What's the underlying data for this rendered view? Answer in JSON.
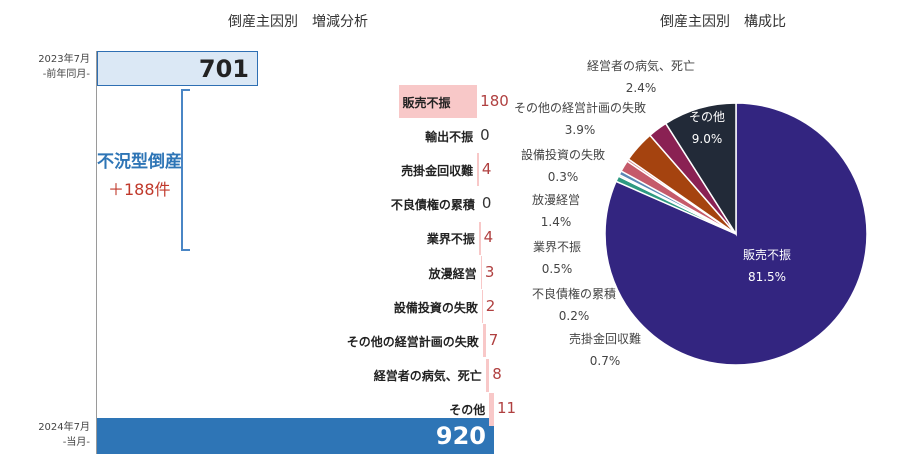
{
  "chart_data": [
    {
      "type": "waterfall",
      "title": "倒産主因別　増減分析",
      "start": {
        "label": "2023年7月",
        "sublabel": "-前年同月-",
        "value": 701
      },
      "end": {
        "label": "2024年7月",
        "sublabel": "-当月-",
        "value": 920
      },
      "categories": [
        "販売不振",
        "輸出不振",
        "売掛金回収難",
        "不良債権の累積",
        "業界不振",
        "放漫経営",
        "設備投資の失敗",
        "その他の経営計画の失敗",
        "経営者の病気、死亡",
        "その他"
      ],
      "values": [
        180,
        0,
        4,
        0,
        4,
        3,
        2,
        7,
        8,
        11
      ],
      "value_labels": [
        "180",
        "0",
        "4",
        "0",
        "4",
        "3",
        "2",
        "7",
        "8",
        "11"
      ],
      "group": {
        "title": "不況型倒産",
        "delta_label": "＋188件",
        "members": [
          "販売不振",
          "輸出不振",
          "売掛金回収難",
          "不良債権の累積",
          "業界不振"
        ]
      }
    },
    {
      "type": "pie",
      "title": "倒産主因別　構成比",
      "categories": [
        "販売不振",
        "売掛金回収難",
        "不良債権の累積",
        "業界不振",
        "放漫経営",
        "設備投資の失敗",
        "その他の経営計画の失敗",
        "経営者の病気、死亡",
        "その他"
      ],
      "values": [
        81.5,
        0.7,
        0.2,
        0.5,
        1.4,
        0.3,
        3.9,
        2.4,
        9.0
      ],
      "value_labels": [
        "81.5%",
        "0.7%",
        "0.2%",
        "0.5%",
        "1.4%",
        "0.3%",
        "3.9%",
        "2.4%",
        "9.0%"
      ],
      "colors": [
        "#332580",
        "#2e9a82",
        "#6a9e3f",
        "#5b88b5",
        "#c55a6a",
        "#d4858a",
        "#a5430f",
        "#8a2153",
        "#222a38"
      ]
    }
  ]
}
